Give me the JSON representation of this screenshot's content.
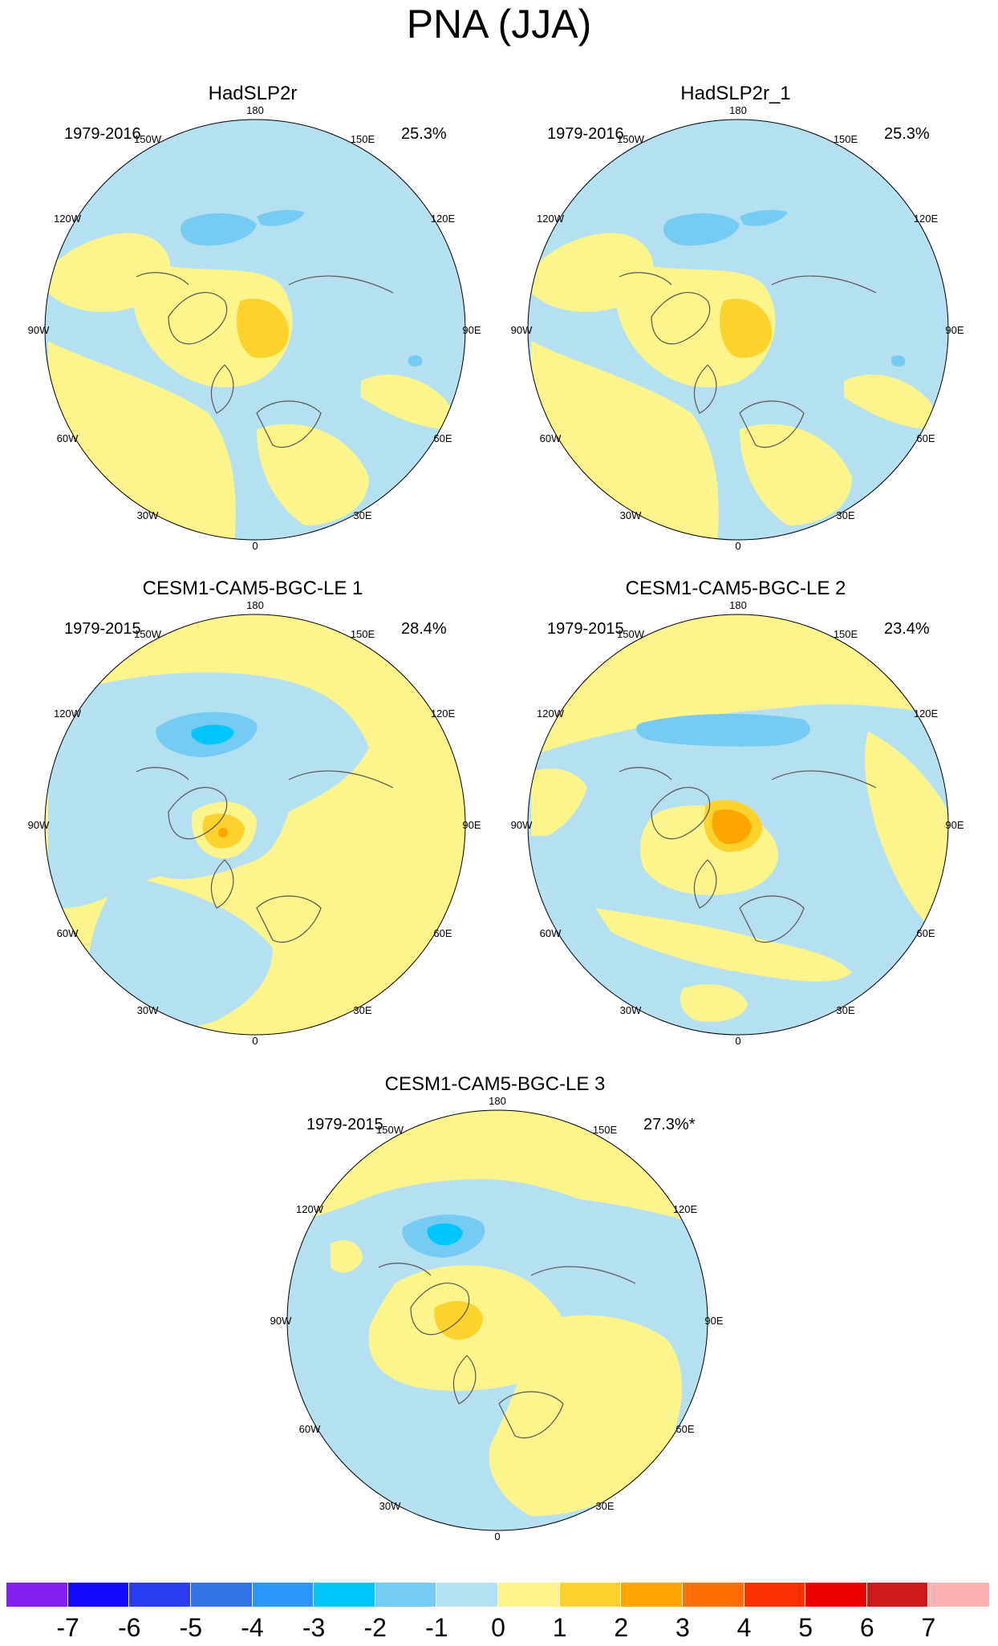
{
  "title": "PNA (JJA)",
  "panels": [
    {
      "title": "HadSLP2r",
      "period": "1979-2016",
      "percent": "25.3%"
    },
    {
      "title": "HadSLP2r_1",
      "period": "1979-2016",
      "percent": "25.3%"
    },
    {
      "title": "CESM1-CAM5-BGC-LE 1",
      "period": "1979-2015",
      "percent": "28.4%"
    },
    {
      "title": "CESM1-CAM5-BGC-LE 2",
      "period": "1979-2015",
      "percent": "23.4%"
    },
    {
      "title": "CESM1-CAM5-BGC-LE 3",
      "period": "1979-2015",
      "percent": "27.3%*"
    }
  ],
  "longitude_labels": [
    "180",
    "150E",
    "120E",
    "90E",
    "60E",
    "30E",
    "0",
    "30W",
    "60W",
    "90W",
    "120W",
    "150W"
  ],
  "colorbar": {
    "colors": [
      "#8221f0",
      "#1409ff",
      "#2a3cf0",
      "#3374e8",
      "#2a97fb",
      "#00c6fe",
      "#76cbf2",
      "#b5e0f2",
      "#fdf58c",
      "#fdd22c",
      "#fda500",
      "#fd6f00",
      "#fd3100",
      "#ec0000",
      "#cd1a1a",
      "#fbb2b2"
    ],
    "labels": [
      "-7",
      "-6",
      "-5",
      "-4",
      "-3",
      "-2",
      "-1",
      "0",
      "1",
      "2",
      "3",
      "4",
      "5",
      "6",
      "7"
    ]
  },
  "fill_colors": {
    "positive_weak": "#fdf58c",
    "negative_weak": "#b5e0f2",
    "negative_mid": "#76cbf2",
    "negative_strong": "#00c6fe",
    "positive_mid": "#fdd22c",
    "positive_strong": "#fda500"
  }
}
